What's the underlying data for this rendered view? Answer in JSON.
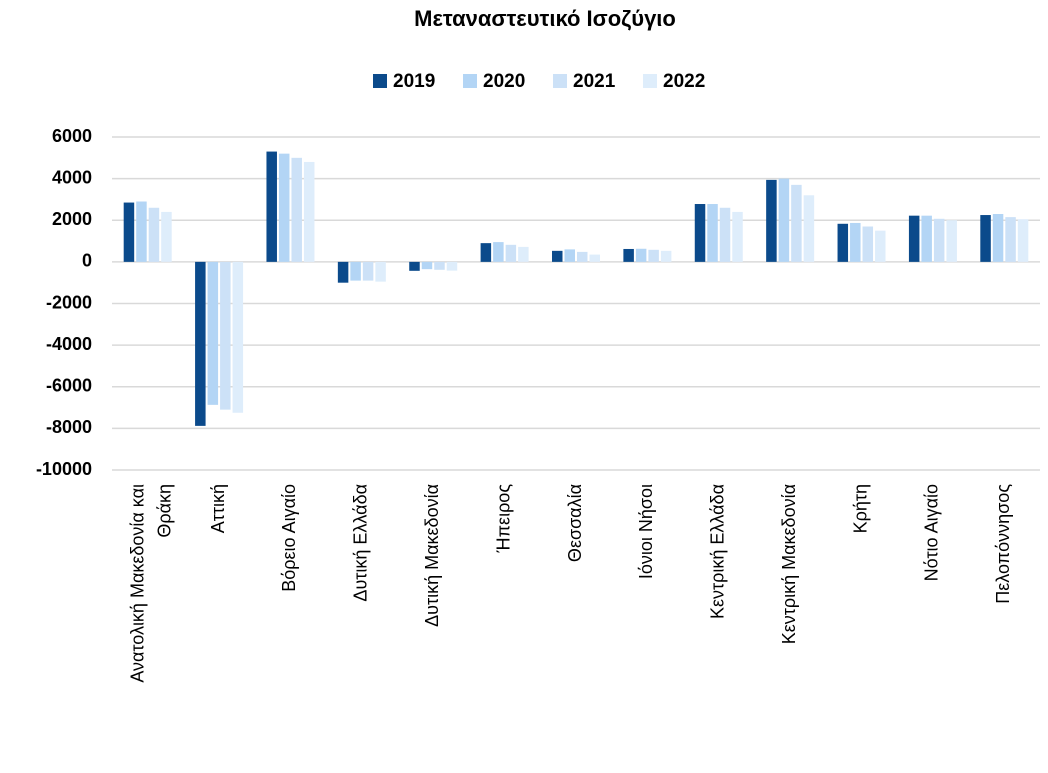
{
  "chart_data": {
    "type": "bar",
    "title": "Μεταναστευτικό Ισοζύγιο",
    "categories": [
      "Ανατολική Μακεδονία και Θράκη",
      "Αττική",
      "Βόρειο Αιγαίο",
      "Δυτική Ελλάδα",
      "Δυτική Μακεδονία",
      "Ήπειρος",
      "Θεσσαλία",
      "Ιόνιοι Νήσοι",
      "Κεντρική Ελλάδα",
      "Κεντρική Μακεδονία",
      "Κρήτη",
      "Νότιο Αιγαίο",
      "Πελοπόννησος"
    ],
    "series": [
      {
        "name": "2019",
        "color": "#0b4a8b",
        "values": [
          2850,
          -7880,
          5300,
          -1000,
          -430,
          900,
          530,
          620,
          2780,
          3940,
          1830,
          2220,
          2250
        ]
      },
      {
        "name": "2020",
        "color": "#b3d5f5",
        "values": [
          2900,
          -6870,
          5200,
          -900,
          -350,
          950,
          600,
          630,
          2780,
          4000,
          1870,
          2220,
          2300
        ]
      },
      {
        "name": "2021",
        "color": "#cce1f7",
        "values": [
          2600,
          -7100,
          5000,
          -900,
          -380,
          820,
          480,
          580,
          2600,
          3700,
          1700,
          2070,
          2150
        ]
      },
      {
        "name": "2022",
        "color": "#deedfb",
        "values": [
          2400,
          -7250,
          4800,
          -950,
          -420,
          720,
          350,
          530,
          2400,
          3200,
          1500,
          2000,
          2050
        ]
      }
    ],
    "ylim": [
      -10000,
      6000
    ],
    "yticks": [
      -10000,
      -8000,
      -6000,
      -4000,
      -2000,
      0,
      2000,
      4000,
      6000
    ],
    "grid": true,
    "legend": "top"
  }
}
